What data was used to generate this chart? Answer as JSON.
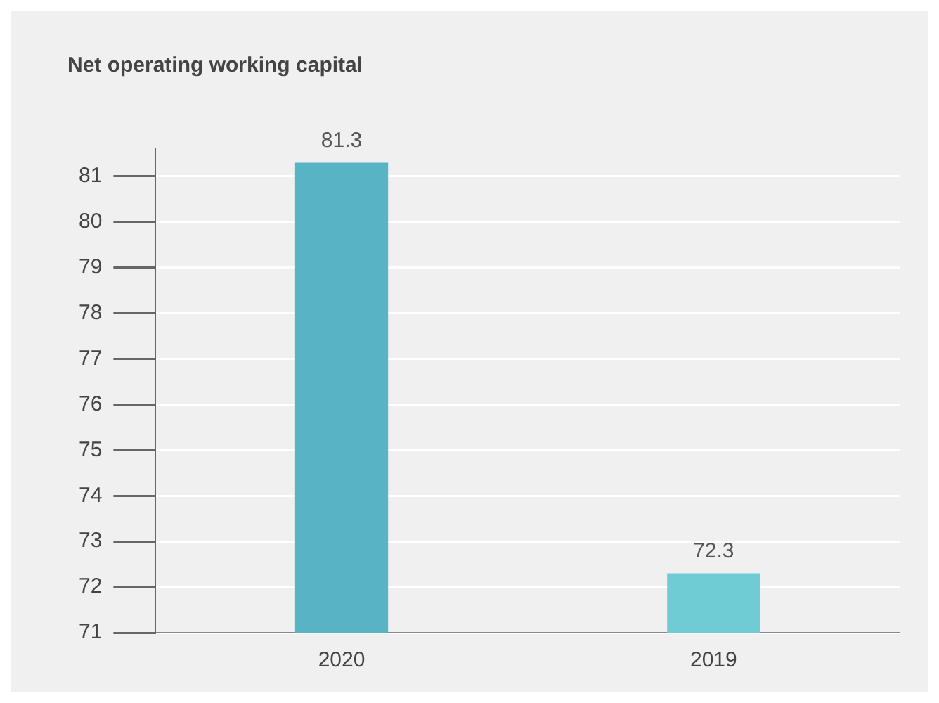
{
  "chart_data": {
    "type": "bar",
    "title": "Net operating working capital",
    "categories": [
      "2020",
      "2019"
    ],
    "values": [
      81.3,
      72.3
    ],
    "colors": [
      "#58b3c5",
      "#6fccd5"
    ],
    "ylim": [
      71,
      81.6
    ],
    "yticks": [
      71,
      72,
      73,
      74,
      75,
      76,
      77,
      78,
      79,
      80,
      81
    ],
    "grid": "y",
    "data_labels": true,
    "legend": false
  }
}
